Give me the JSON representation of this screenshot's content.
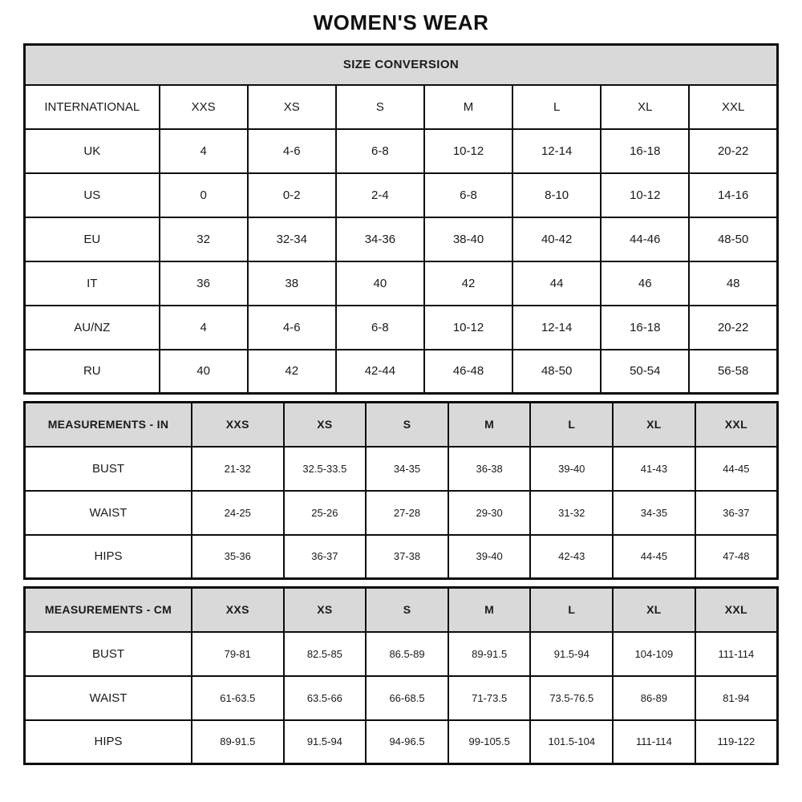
{
  "page": {
    "title": "WOMEN'S WEAR"
  },
  "colors": {
    "header_bg": "#d9d9d9",
    "border": "#0d0d0d",
    "text": "#1a1a1a",
    "background": "#ffffff"
  },
  "tables": [
    {
      "name": "size-conversion",
      "banner": "SIZE CONVERSION",
      "columns": [
        "INTERNATIONAL",
        "XXS",
        "XS",
        "S",
        "M",
        "L",
        "XL",
        "XXL"
      ],
      "rows": [
        {
          "label": "UK",
          "values": [
            "4",
            "4-6",
            "6-8",
            "10-12",
            "12-14",
            "16-18",
            "20-22"
          ]
        },
        {
          "label": "US",
          "values": [
            "0",
            "0-2",
            "2-4",
            "6-8",
            "8-10",
            "10-12",
            "14-16"
          ]
        },
        {
          "label": "EU",
          "values": [
            "32",
            "32-34",
            "34-36",
            "38-40",
            "40-42",
            "44-46",
            "48-50"
          ]
        },
        {
          "label": "IT",
          "values": [
            "36",
            "38",
            "40",
            "42",
            "44",
            "46",
            "48"
          ]
        },
        {
          "label": "AU/NZ",
          "values": [
            "4",
            "4-6",
            "6-8",
            "10-12",
            "12-14",
            "16-18",
            "20-22"
          ]
        },
        {
          "label": "RU",
          "values": [
            "40",
            "42",
            "42-44",
            "46-48",
            "48-50",
            "50-54",
            "56-58"
          ]
        }
      ]
    },
    {
      "name": "measurements-in",
      "banner": null,
      "columns": [
        "MEASUREMENTS - IN",
        "XXS",
        "XS",
        "S",
        "M",
        "L",
        "XL",
        "XXL"
      ],
      "rows": [
        {
          "label": "BUST",
          "values": [
            "21-32",
            "32.5-33.5",
            "34-35",
            "36-38",
            "39-40",
            "41-43",
            "44-45"
          ]
        },
        {
          "label": "WAIST",
          "values": [
            "24-25",
            "25-26",
            "27-28",
            "29-30",
            "31-32",
            "34-35",
            "36-37"
          ]
        },
        {
          "label": "HIPS",
          "values": [
            "35-36",
            "36-37",
            "37-38",
            "39-40",
            "42-43",
            "44-45",
            "47-48"
          ]
        }
      ]
    },
    {
      "name": "measurements-cm",
      "banner": null,
      "columns": [
        "MEASUREMENTS - CM",
        "XXS",
        "XS",
        "S",
        "M",
        "L",
        "XL",
        "XXL"
      ],
      "rows": [
        {
          "label": "BUST",
          "values": [
            "79-81",
            "82.5-85",
            "86.5-89",
            "89-91.5",
            "91.5-94",
            "104-109",
            "111-114"
          ]
        },
        {
          "label": "WAIST",
          "values": [
            "61-63.5",
            "63.5-66",
            "66-68.5",
            "71-73.5",
            "73.5-76.5",
            "86-89",
            "81-94"
          ]
        },
        {
          "label": "HIPS",
          "values": [
            "89-91.5",
            "91.5-94",
            "94-96.5",
            "99-105.5",
            "101.5-104",
            "111-114",
            "119-122"
          ]
        }
      ]
    }
  ]
}
